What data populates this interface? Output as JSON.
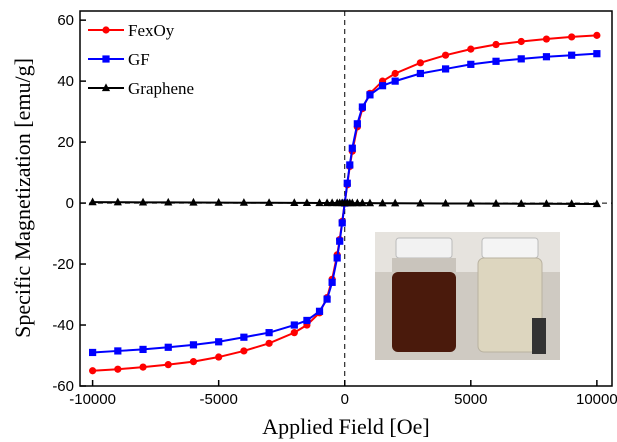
{
  "chart_data": {
    "type": "line",
    "x_label": "Applied Field [Oe]",
    "y_label": "Specific Magnetization [emu/g]",
    "x": [
      -10000,
      -9000,
      -8000,
      -7000,
      -6000,
      -5000,
      -4000,
      -3000,
      -2000,
      -1500,
      -1000,
      -700,
      -500,
      -300,
      -200,
      -100,
      0,
      100,
      200,
      300,
      500,
      700,
      1000,
      1500,
      2000,
      3000,
      4000,
      5000,
      6000,
      7000,
      8000,
      9000,
      10000
    ],
    "series": [
      {
        "name": "FexOy",
        "color": "#ff0000",
        "marker": "circle",
        "values": [
          -55,
          -54.5,
          -53.8,
          -53,
          -52,
          -50.5,
          -48.5,
          -46,
          -42.5,
          -40,
          -36,
          -31,
          -25,
          -17,
          -12,
          -6,
          0,
          6,
          12,
          17,
          25,
          31,
          36,
          40,
          42.5,
          46,
          48.5,
          50.5,
          52,
          53,
          53.8,
          54.5,
          55
        ]
      },
      {
        "name": "GF",
        "color": "#0000ff",
        "marker": "square",
        "values": [
          -49,
          -48.5,
          -48,
          -47.3,
          -46.5,
          -45.5,
          -44,
          -42.5,
          -40,
          -38.5,
          -35.5,
          -31.5,
          -26,
          -18,
          -12.5,
          -6.5,
          0,
          6.5,
          12.5,
          18,
          26,
          31.5,
          35.5,
          38.5,
          40,
          42.5,
          44,
          45.5,
          46.5,
          47.3,
          48,
          48.5,
          49
        ]
      },
      {
        "name": "Graphene",
        "color": "#000000",
        "marker": "triangle",
        "values": [
          0.3,
          0.27,
          0.24,
          0.21,
          0.18,
          0.15,
          0.12,
          0.09,
          0.06,
          0.05,
          0.03,
          0.02,
          0.02,
          0.01,
          0.01,
          0,
          0,
          0,
          -0.01,
          -0.01,
          -0.02,
          -0.02,
          -0.03,
          -0.05,
          -0.06,
          -0.09,
          -0.12,
          -0.15,
          -0.18,
          -0.21,
          -0.24,
          -0.27,
          -0.3
        ]
      }
    ],
    "xlim": [
      -10500,
      10600
    ],
    "ylim": [
      -60,
      63
    ],
    "xticks": [
      -10000,
      -5000,
      0,
      5000,
      10000
    ],
    "yticks": [
      -60,
      -40,
      -20,
      0,
      20,
      40,
      60
    ],
    "legend": "upper left"
  }
}
